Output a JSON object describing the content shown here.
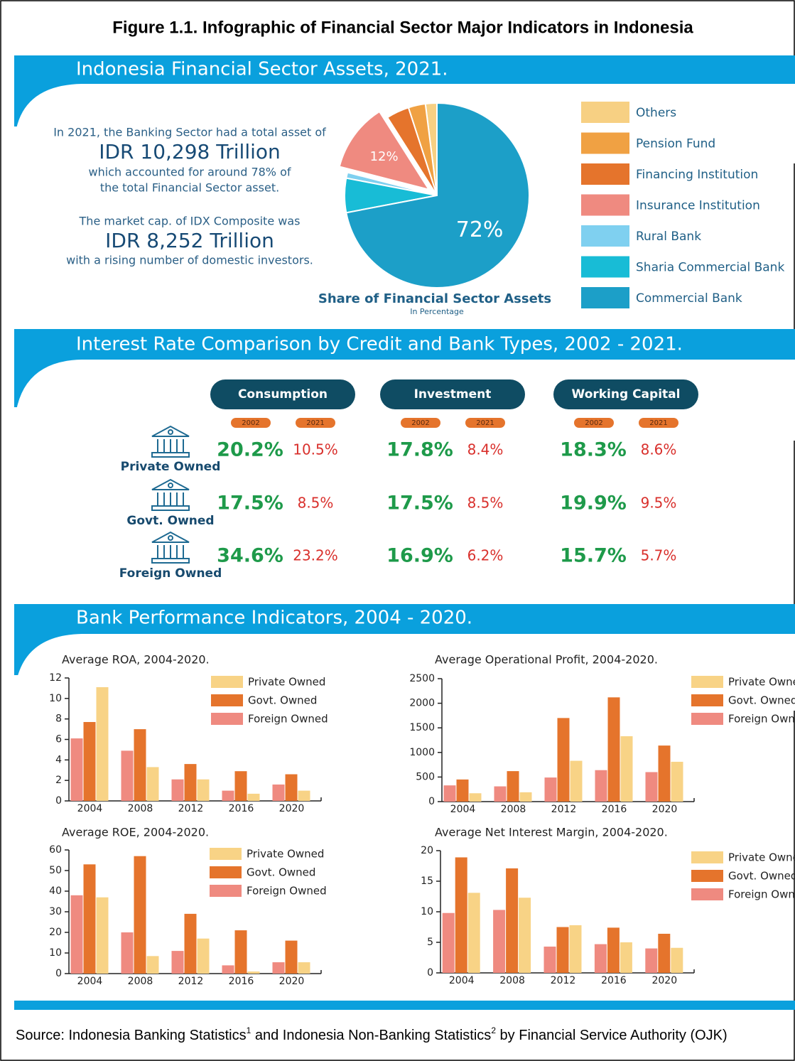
{
  "title": "Figure 1.1. Infographic of Financial Sector Major Indicators in Indonesia",
  "sections": [
    {
      "heading": "Indonesia Financial Sector Assets, 2021."
    },
    {
      "heading": "Interest Rate Comparison by Credit and Bank Types, 2002 - 2021."
    },
    {
      "heading": "Bank Performance Indicators, 2004 - 2020."
    }
  ],
  "assets_text": [
    "In 2021, the Banking Sector had a total asset of",
    "IDR 10,298 Trillion",
    "which accounted for around 78% of",
    "the total Financial Sector asset.",
    "The market cap. of IDX Composite was",
    "IDR 8,252 Trillion",
    "with a rising number of domestic investors."
  ],
  "interest_table": {
    "credit_types": [
      "Consumption",
      "Investment",
      "Working Capital"
    ],
    "years": [
      "2002",
      "2021"
    ],
    "rows": [
      {
        "bank": "Private Owned",
        "values": [
          [
            "20.2%",
            "10.5%"
          ],
          [
            "17.8%",
            "8.4%"
          ],
          [
            "18.3%",
            "8.6%"
          ]
        ]
      },
      {
        "bank": "Govt. Owned",
        "values": [
          [
            "17.5%",
            "8.5%"
          ],
          [
            "17.5%",
            "8.5%"
          ],
          [
            "19.9%",
            "9.5%"
          ]
        ]
      },
      {
        "bank": "Foreign Owned",
        "values": [
          [
            "34.6%",
            "23.2%"
          ],
          [
            "16.9%",
            "6.2%"
          ],
          [
            "15.7%",
            "5.7%"
          ]
        ]
      }
    ]
  },
  "chart_data": [
    {
      "type": "pie",
      "title": "Share of Financial Sector Assets",
      "subtitle": "In Percentage",
      "categories": [
        "Others",
        "Pension Fund",
        "Financing Institution",
        "Insurance Institution",
        "Rural Bank",
        "Sharia Commercial Bank",
        "Commercial Bank"
      ],
      "values": [
        2,
        3,
        4,
        12,
        1,
        6,
        72
      ],
      "value_labels": [
        null,
        null,
        null,
        "12%",
        null,
        null,
        "72%"
      ],
      "colors": [
        "#f7d083",
        "#f0a143",
        "#e5742c",
        "#ef8a80",
        "#7fd0f0",
        "#18bcd6",
        "#1c9fc8"
      ],
      "exploded": "Insurance Institution",
      "legend": "right"
    },
    {
      "type": "bar",
      "title": "Average ROA, 2004-2020.",
      "categories": [
        "2004",
        "2008",
        "2012",
        "2016",
        "2020"
      ],
      "series": [
        {
          "name": "Private Owned",
          "color": "#f8d386",
          "values": [
            11.1,
            3.3,
            2.1,
            0.7,
            1.0
          ]
        },
        {
          "name": "Govt. Owned",
          "color": "#e5742c",
          "values": [
            7.7,
            7.0,
            3.6,
            2.9,
            2.6
          ]
        },
        {
          "name": "Foreign Owned",
          "color": "#ef8a80",
          "values": [
            6.1,
            4.9,
            2.1,
            1.0,
            1.6
          ]
        }
      ],
      "ylim": [
        0,
        12
      ],
      "yticks": [
        0,
        2,
        4,
        6,
        8,
        10,
        12
      ],
      "grid": false,
      "legend": "upper right"
    },
    {
      "type": "bar",
      "title": "Average Operational Profit, 2004-2020.",
      "categories": [
        "2004",
        "2008",
        "2012",
        "2016",
        "2020"
      ],
      "series": [
        {
          "name": "Private Owned",
          "color": "#f8d386",
          "values": [
            170,
            190,
            830,
            1330,
            810
          ]
        },
        {
          "name": "Govt. Owned",
          "color": "#e5742c",
          "values": [
            450,
            620,
            1700,
            2120,
            1140
          ]
        },
        {
          "name": "Foreign Owned",
          "color": "#ef8a80",
          "values": [
            330,
            310,
            490,
            640,
            600
          ]
        }
      ],
      "ylim": [
        0,
        2500
      ],
      "yticks": [
        0,
        500,
        1000,
        1500,
        2000,
        2500
      ],
      "grid": false,
      "legend": "upper right"
    },
    {
      "type": "bar",
      "title": "Average ROE, 2004-2020.",
      "categories": [
        "2004",
        "2008",
        "2012",
        "2016",
        "2020"
      ],
      "series": [
        {
          "name": "Private Owned",
          "color": "#f8d386",
          "values": [
            37,
            8.5,
            17,
            1,
            5.5
          ]
        },
        {
          "name": "Govt. Owned",
          "color": "#e5742c",
          "values": [
            53,
            57,
            29,
            21,
            16
          ]
        },
        {
          "name": "Foreign Owned",
          "color": "#ef8a80",
          "values": [
            38,
            20,
            11,
            4,
            5.5
          ]
        }
      ],
      "ylim": [
        0,
        60
      ],
      "yticks": [
        0,
        10,
        20,
        30,
        40,
        50,
        60
      ],
      "grid": false,
      "legend": "upper right"
    },
    {
      "type": "bar",
      "title": "Average Net Interest Margin, 2004-2020.",
      "categories": [
        "2004",
        "2008",
        "2012",
        "2016",
        "2020"
      ],
      "series": [
        {
          "name": "Private Owned",
          "color": "#f8d386",
          "values": [
            13.1,
            12.3,
            7.8,
            5.0,
            4.1
          ]
        },
        {
          "name": "Govt. Owned",
          "color": "#e5742c",
          "values": [
            18.9,
            17.1,
            7.5,
            7.4,
            6.4
          ]
        },
        {
          "name": "Foreign Owned",
          "color": "#ef8a80",
          "values": [
            9.8,
            10.3,
            4.3,
            4.7,
            4.0
          ]
        }
      ],
      "ylim": [
        0,
        20
      ],
      "yticks": [
        0,
        5,
        10,
        15,
        20
      ],
      "grid": false,
      "legend": "upper right"
    }
  ],
  "source": {
    "parts": [
      "Source: Indonesia Banking Statistics",
      "1",
      " and Indonesia Non-Banking Statistics",
      "2",
      " by Financial Service Authority (OJK)"
    ]
  }
}
